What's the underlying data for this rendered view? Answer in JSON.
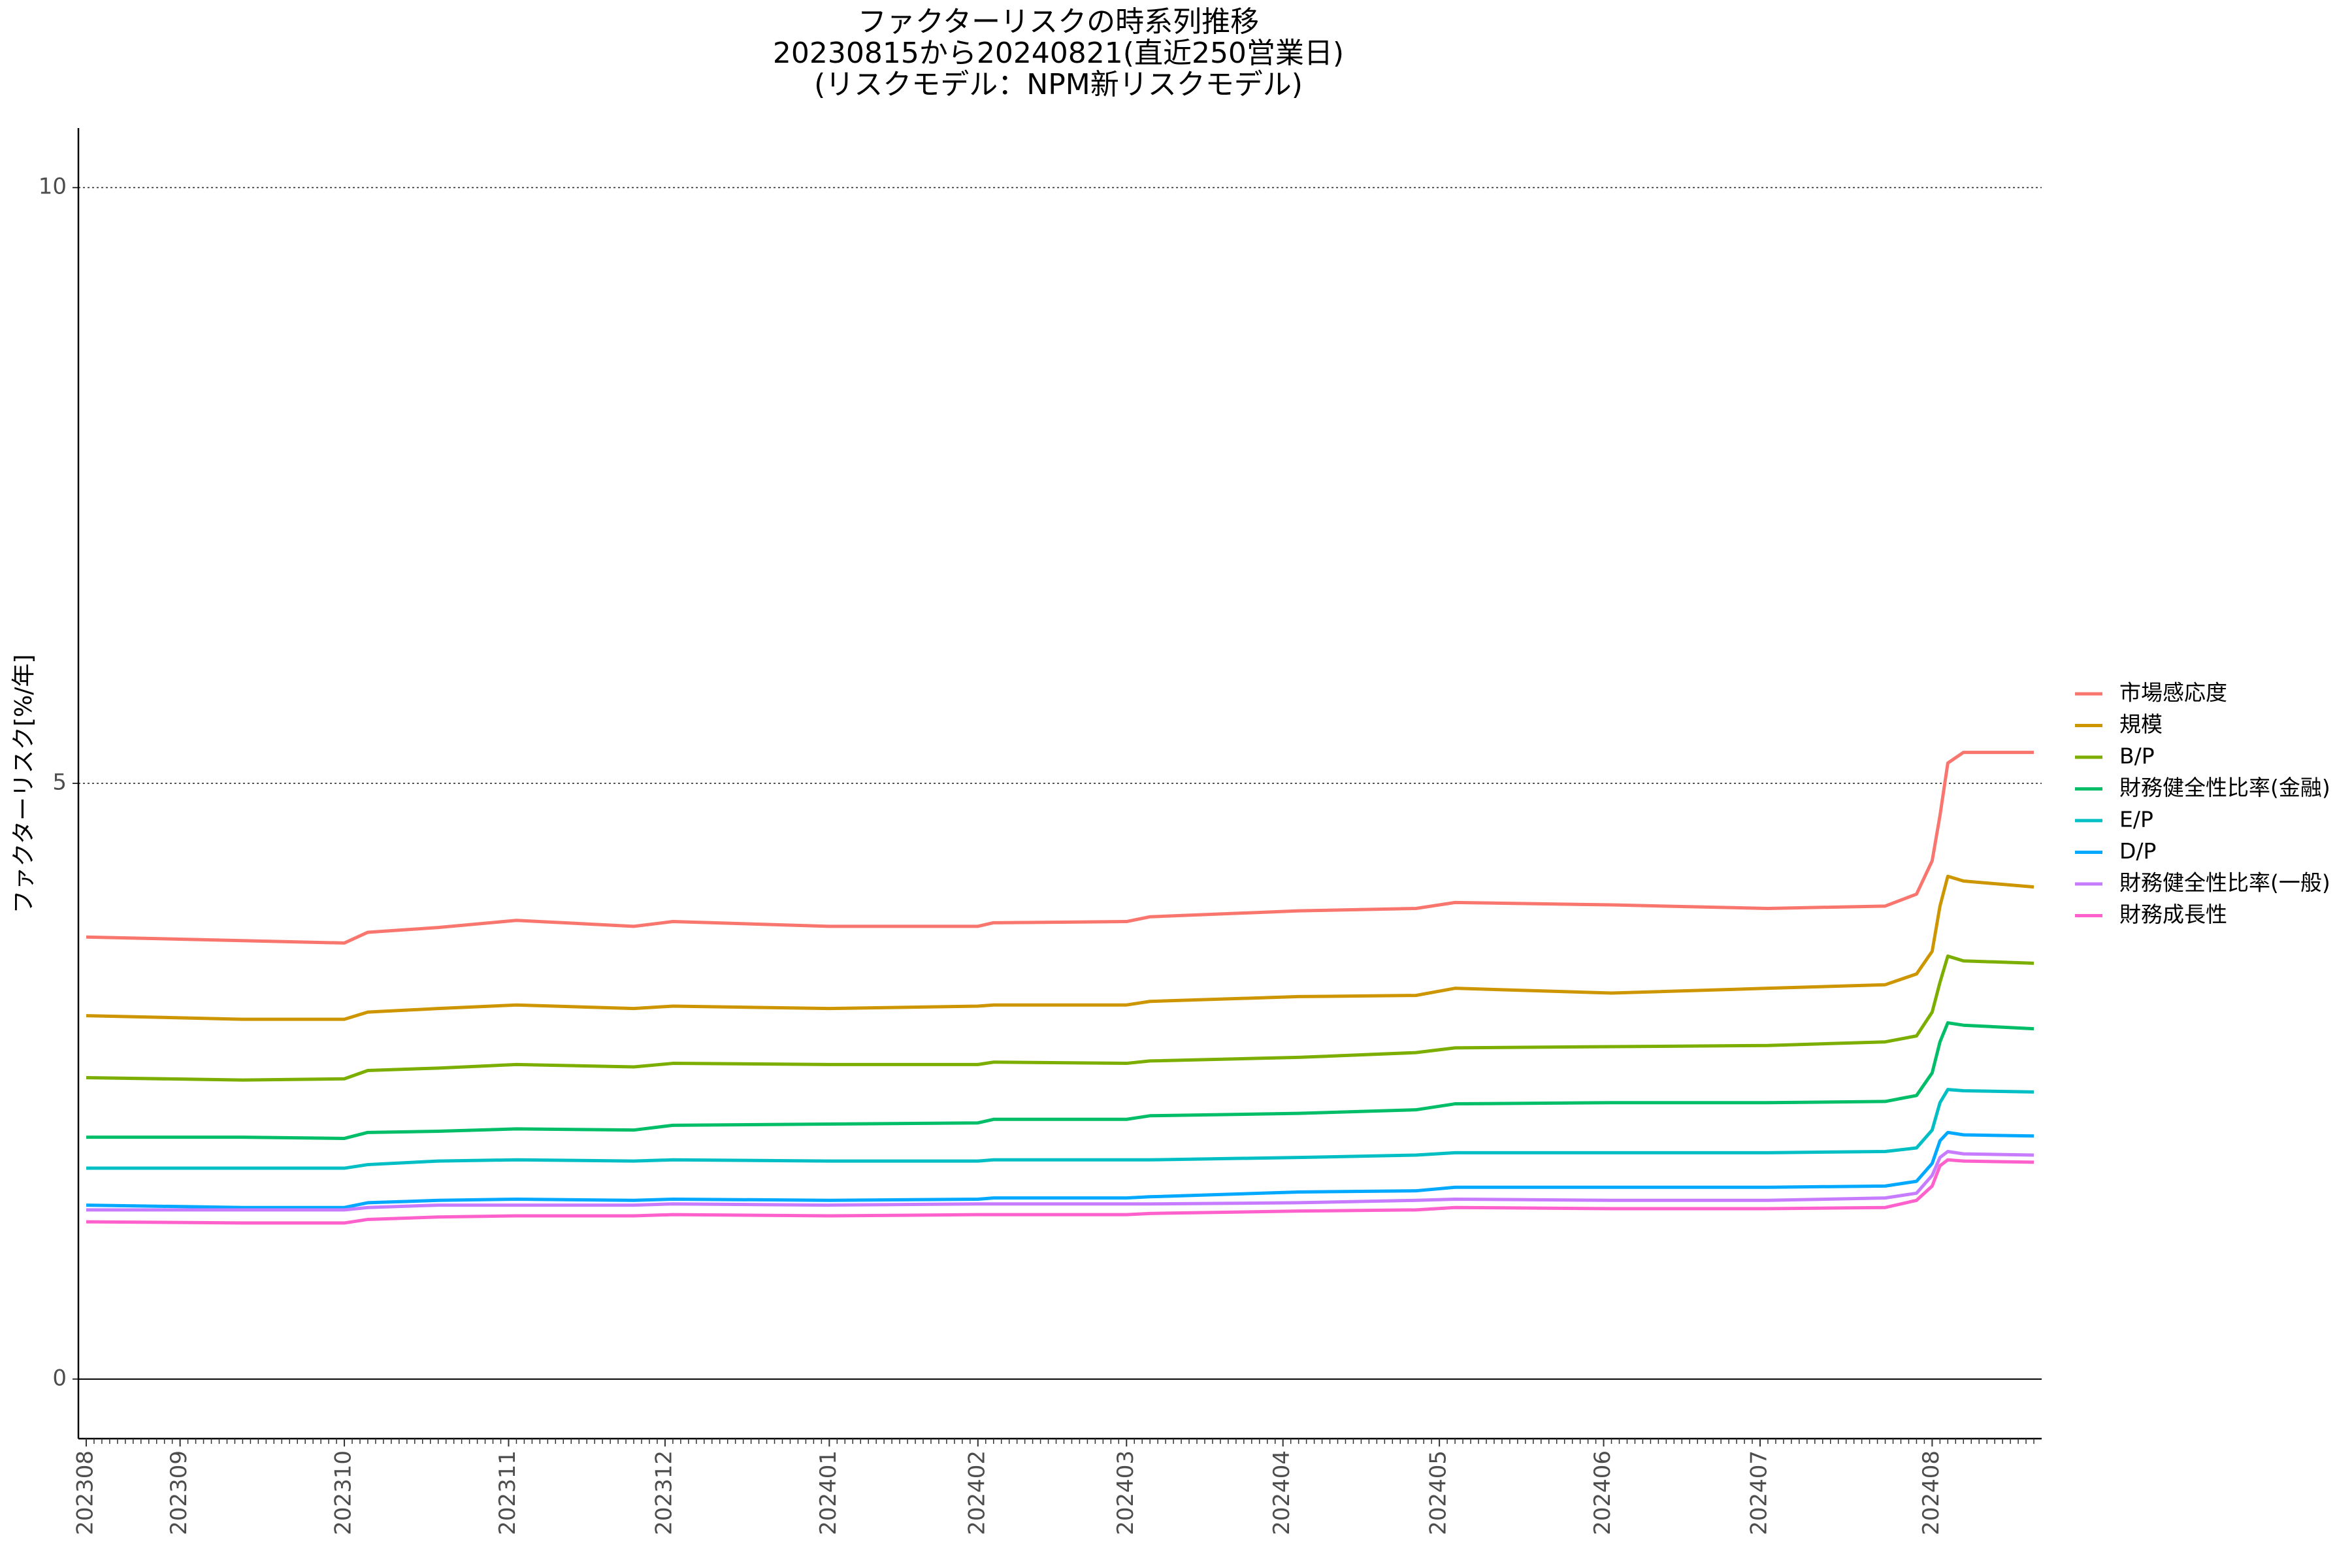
{
  "chart_data": {
    "type": "line",
    "title_lines": [
      "ファクターリスクの時系列推移",
      "20230815から20240821(直近250営業日)",
      "(リスクモデル：NPM新リスクモデル)"
    ],
    "y_label": "ファクターリスク[%/年]",
    "x": [
      0,
      20,
      33,
      36,
      45,
      55,
      70,
      75,
      95,
      114,
      116,
      133,
      136,
      155,
      170,
      175,
      195,
      215,
      230,
      234,
      236,
      237,
      238,
      240,
      249
    ],
    "xlim": [
      -1,
      250
    ],
    "xticks": [
      {
        "value": 0,
        "label": "202308"
      },
      {
        "value": 12,
        "label": "202309"
      },
      {
        "value": 33,
        "label": "202310"
      },
      {
        "value": 54,
        "label": "202311"
      },
      {
        "value": 74,
        "label": "202312"
      },
      {
        "value": 95,
        "label": "202401"
      },
      {
        "value": 114,
        "label": "202402"
      },
      {
        "value": 133,
        "label": "202403"
      },
      {
        "value": 153,
        "label": "202404"
      },
      {
        "value": 173,
        "label": "202405"
      },
      {
        "value": 194,
        "label": "202406"
      },
      {
        "value": 214,
        "label": "202407"
      },
      {
        "value": 236,
        "label": "202408"
      }
    ],
    "ylim": [
      -0.5,
      10.5
    ],
    "yticks": [
      0,
      5,
      10
    ],
    "grid": true,
    "legend": "right",
    "series": [
      {
        "name": "市場感応度",
        "color": "#F8766D",
        "values": [
          3.71,
          3.68,
          3.66,
          3.75,
          3.79,
          3.85,
          3.8,
          3.84,
          3.8,
          3.8,
          3.83,
          3.84,
          3.88,
          3.93,
          3.95,
          4.0,
          3.98,
          3.95,
          3.97,
          4.07,
          4.35,
          4.73,
          5.17,
          5.26,
          5.26
        ]
      },
      {
        "name": "規模",
        "color": "#CD9600",
        "values": [
          3.05,
          3.02,
          3.02,
          3.08,
          3.11,
          3.14,
          3.11,
          3.13,
          3.11,
          3.13,
          3.14,
          3.14,
          3.17,
          3.21,
          3.22,
          3.28,
          3.24,
          3.28,
          3.31,
          3.4,
          3.59,
          3.97,
          4.22,
          4.18,
          4.13
        ]
      },
      {
        "name": "B/P",
        "color": "#7CAE00",
        "values": [
          2.53,
          2.51,
          2.52,
          2.59,
          2.61,
          2.64,
          2.62,
          2.65,
          2.64,
          2.64,
          2.66,
          2.65,
          2.67,
          2.7,
          2.74,
          2.78,
          2.79,
          2.8,
          2.83,
          2.88,
          3.08,
          3.33,
          3.55,
          3.51,
          3.49
        ]
      },
      {
        "name": "財務健全性比率(金融)",
        "color": "#00BE67",
        "values": [
          2.03,
          2.03,
          2.02,
          2.07,
          2.08,
          2.1,
          2.09,
          2.13,
          2.14,
          2.15,
          2.18,
          2.18,
          2.21,
          2.23,
          2.26,
          2.31,
          2.32,
          2.32,
          2.33,
          2.38,
          2.57,
          2.83,
          2.99,
          2.97,
          2.94
        ]
      },
      {
        "name": "E/P",
        "color": "#00BFC4",
        "values": [
          1.77,
          1.77,
          1.77,
          1.8,
          1.83,
          1.84,
          1.83,
          1.84,
          1.83,
          1.83,
          1.84,
          1.84,
          1.84,
          1.86,
          1.88,
          1.9,
          1.9,
          1.9,
          1.91,
          1.94,
          2.09,
          2.32,
          2.43,
          2.42,
          2.41
        ]
      },
      {
        "name": "D/P",
        "color": "#00A9FF",
        "values": [
          1.46,
          1.44,
          1.44,
          1.48,
          1.5,
          1.51,
          1.5,
          1.51,
          1.5,
          1.51,
          1.52,
          1.52,
          1.53,
          1.57,
          1.58,
          1.61,
          1.61,
          1.61,
          1.62,
          1.66,
          1.81,
          2.0,
          2.07,
          2.05,
          2.04
        ]
      },
      {
        "name": "財務健全性比率(一般)",
        "color": "#C77CFF",
        "values": [
          1.42,
          1.42,
          1.42,
          1.44,
          1.46,
          1.46,
          1.46,
          1.47,
          1.46,
          1.47,
          1.47,
          1.47,
          1.47,
          1.48,
          1.5,
          1.51,
          1.5,
          1.5,
          1.52,
          1.56,
          1.71,
          1.86,
          1.91,
          1.89,
          1.88
        ]
      },
      {
        "name": "財務成長性",
        "color": "#FF61CC",
        "values": [
          1.32,
          1.31,
          1.31,
          1.34,
          1.36,
          1.37,
          1.37,
          1.38,
          1.37,
          1.38,
          1.38,
          1.38,
          1.39,
          1.41,
          1.42,
          1.44,
          1.43,
          1.43,
          1.44,
          1.5,
          1.62,
          1.79,
          1.84,
          1.83,
          1.82
        ]
      }
    ]
  }
}
